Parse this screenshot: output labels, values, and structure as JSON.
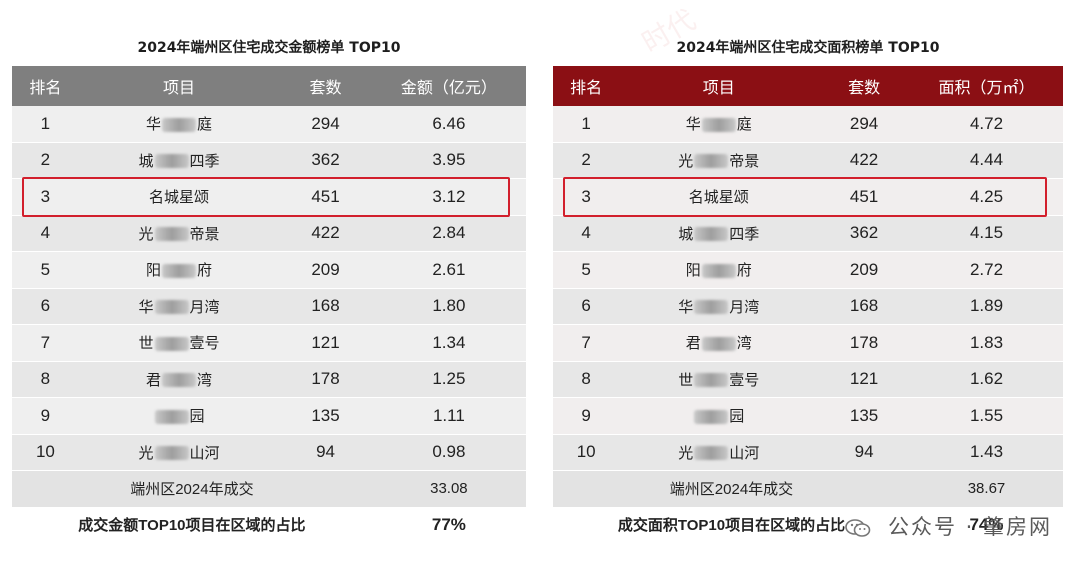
{
  "left": {
    "title": "2024年端州区住宅成交金额榜单 TOP10",
    "headers": [
      "排名",
      "项目",
      "套数",
      "金额（亿元）"
    ],
    "rows": [
      {
        "rank": "1",
        "name_a": "华",
        "name_b": "庭",
        "units": "294",
        "value": "6.46"
      },
      {
        "rank": "2",
        "name_a": "城",
        "name_b": "四季",
        "units": "362",
        "value": "3.95"
      },
      {
        "rank": "3",
        "name_a": "名城星颂",
        "name_b": "",
        "units": "451",
        "value": "3.12"
      },
      {
        "rank": "4",
        "name_a": "光",
        "name_b": "帝景",
        "units": "422",
        "value": "2.84"
      },
      {
        "rank": "5",
        "name_a": "阳",
        "name_b": "府",
        "units": "209",
        "value": "2.61"
      },
      {
        "rank": "6",
        "name_a": "华",
        "name_b": "月湾",
        "units": "168",
        "value": "1.80"
      },
      {
        "rank": "7",
        "name_a": "世",
        "name_b": "壹号",
        "units": "121",
        "value": "1.34"
      },
      {
        "rank": "8",
        "name_a": "君",
        "name_b": "湾",
        "units": "178",
        "value": "1.25"
      },
      {
        "rank": "9",
        "name_a": "",
        "name_b": "园",
        "units": "135",
        "value": "1.11"
      },
      {
        "rank": "10",
        "name_a": "光",
        "name_b": "山河",
        "units": "94",
        "value": "0.98"
      }
    ],
    "summary_label": "端州区2024年成交",
    "summary_value": "33.08",
    "share_label": "成交金额TOP10项目在区域的占比",
    "share_value": "77%"
  },
  "right": {
    "title": "2024年端州区住宅成交面积榜单 TOP10",
    "headers": [
      "排名",
      "项目",
      "套数",
      "面积（万㎡）"
    ],
    "rows": [
      {
        "rank": "1",
        "name_a": "华",
        "name_b": "庭",
        "units": "294",
        "value": "4.72"
      },
      {
        "rank": "2",
        "name_a": "光",
        "name_b": "帝景",
        "units": "422",
        "value": "4.44"
      },
      {
        "rank": "3",
        "name_a": "名城星颂",
        "name_b": "",
        "units": "451",
        "value": "4.25"
      },
      {
        "rank": "4",
        "name_a": "城",
        "name_b": "四季",
        "units": "362",
        "value": "4.15"
      },
      {
        "rank": "5",
        "name_a": "阳",
        "name_b": "府",
        "units": "209",
        "value": "2.72"
      },
      {
        "rank": "6",
        "name_a": "华",
        "name_b": "月湾",
        "units": "168",
        "value": "1.89"
      },
      {
        "rank": "7",
        "name_a": "君",
        "name_b": "湾",
        "units": "178",
        "value": "1.83"
      },
      {
        "rank": "8",
        "name_a": "世",
        "name_b": "壹号",
        "units": "121",
        "value": "1.62"
      },
      {
        "rank": "9",
        "name_a": "",
        "name_b": "园",
        "units": "135",
        "value": "1.55"
      },
      {
        "rank": "10",
        "name_a": "光",
        "name_b": "山河",
        "units": "94",
        "value": "1.43"
      }
    ],
    "summary_label": "端州区2024年成交",
    "summary_value": "38.67",
    "share_label": "成交面积TOP10项目在区域的占比",
    "share_value": "74%"
  },
  "highlight_rank": "3",
  "watermark": {
    "text": "公众号 · 肇房网",
    "icon": "wechat-icon"
  },
  "colors": {
    "left_header": "#7f7f7f",
    "right_header": "#8b0f14",
    "highlight_border": "#d21f2c"
  }
}
